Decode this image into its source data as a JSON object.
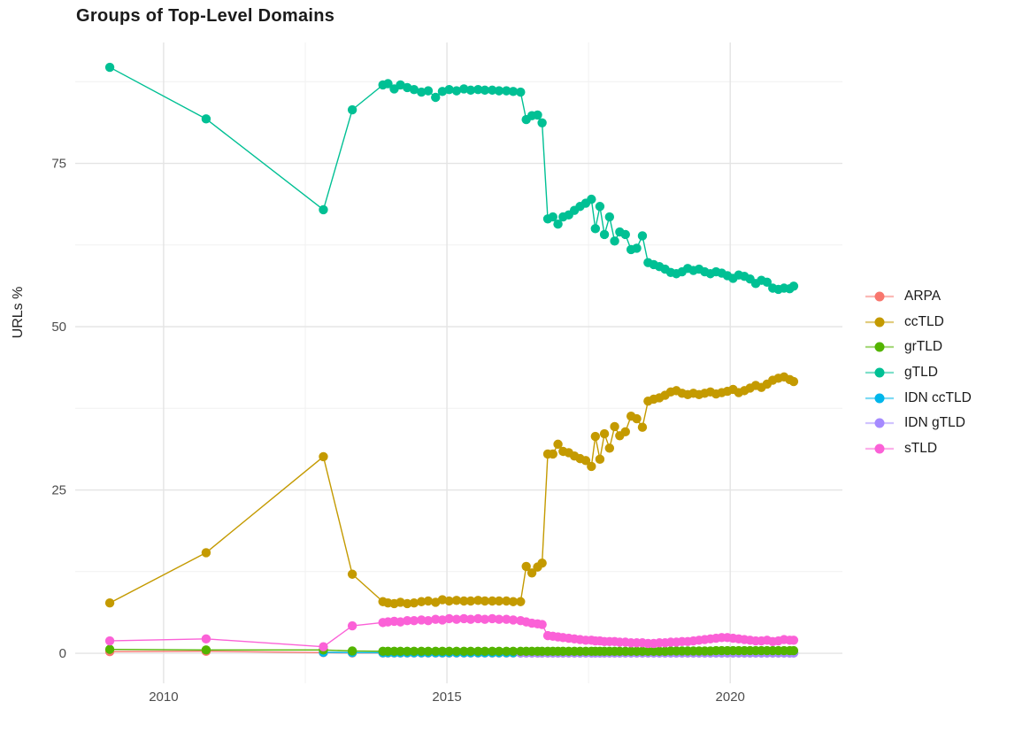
{
  "chart": {
    "title": "Groups of Top-Level Domains",
    "ylabel": "URLs %"
  },
  "chart_data": {
    "type": "line",
    "title": "Groups of Top-Level Domains",
    "xlabel": "",
    "ylabel": "URLs %",
    "grid": true,
    "legend_position": "right",
    "marker": "point",
    "axes": {
      "x": {
        "domain": [
          2008.44,
          2021.98
        ],
        "ticks": [
          2010,
          2015,
          2020
        ],
        "tick_labels": [
          "2010",
          "2015",
          "2020"
        ],
        "minor": [
          2012.5,
          2017.5
        ]
      },
      "y": {
        "domain": [
          -4.6,
          93.5
        ],
        "ticks": [
          0,
          25,
          50,
          75
        ],
        "tick_labels": [
          "0",
          "25",
          "50",
          "75"
        ],
        "minor": [
          12.5,
          37.5,
          62.5,
          87.5
        ]
      }
    },
    "draw_order": [
      0,
      4,
      5,
      1,
      2,
      3,
      6
    ],
    "x": [
      2009.05,
      2010.75,
      2012.82,
      2013.33,
      2013.87,
      2013.96,
      2014.07,
      2014.18,
      2014.3,
      2014.42,
      2014.55,
      2014.67,
      2014.8,
      2014.92,
      2015.04,
      2015.17,
      2015.3,
      2015.42,
      2015.55,
      2015.67,
      2015.8,
      2015.92,
      2016.05,
      2016.17,
      2016.3,
      2016.4,
      2016.5,
      2016.6,
      2016.68,
      2016.78,
      2016.87,
      2016.96,
      2017.05,
      2017.15,
      2017.25,
      2017.35,
      2017.45,
      2017.55,
      2017.62,
      2017.7,
      2017.78,
      2017.87,
      2017.96,
      2018.05,
      2018.15,
      2018.25,
      2018.35,
      2018.45,
      2018.55,
      2018.65,
      2018.75,
      2018.85,
      2018.95,
      2019.05,
      2019.15,
      2019.25,
      2019.35,
      2019.45,
      2019.55,
      2019.65,
      2019.75,
      2019.85,
      2019.95,
      2020.05,
      2020.15,
      2020.25,
      2020.35,
      2020.45,
      2020.55,
      2020.65,
      2020.75,
      2020.85,
      2020.95,
      2021.05,
      2021.12
    ],
    "series": [
      {
        "name": "ARPA",
        "color": "#F8766D",
        "values": [
          0.25,
          0.3,
          0.1,
          0.05,
          0.05,
          0.05,
          0.05,
          0.05,
          0.05,
          0.05,
          0.05,
          0.05,
          0.05,
          0.05,
          0.05,
          0.05,
          0.05,
          0.05,
          0.05,
          0.05,
          0.05,
          0.05,
          0.05,
          0.05,
          0.05,
          0.05,
          0.05,
          0.05,
          0.05,
          0.05,
          0.05,
          0.05,
          0.05,
          0.05,
          0.05,
          0.05,
          0.05,
          0.05,
          0.05,
          0.05,
          0.05,
          0.05,
          0.05,
          0.05,
          0.05,
          0.05,
          0.05,
          0.05,
          0.05,
          0.05,
          0.05,
          0.05,
          0.05,
          0.05,
          0.05,
          0.05,
          0.05,
          0.05,
          0.05,
          0.05,
          0.05,
          0.05,
          0.05,
          0.05,
          0.05,
          0.05,
          0.05,
          0.05,
          0.05,
          0.05,
          0.05,
          0.05,
          0.05,
          0.05,
          0.05
        ]
      },
      {
        "name": "ccTLD",
        "color": "#C49A00",
        "values": [
          7.7,
          15.4,
          30.1,
          12.1,
          7.9,
          7.7,
          7.6,
          7.8,
          7.6,
          7.7,
          7.9,
          8.0,
          7.8,
          8.2,
          8.0,
          8.1,
          8.0,
          8.0,
          8.1,
          8.0,
          8.0,
          8.0,
          8.0,
          7.9,
          7.9,
          13.3,
          12.3,
          13.2,
          13.8,
          30.5,
          30.5,
          32.0,
          30.9,
          30.7,
          30.2,
          29.8,
          29.5,
          28.6,
          33.2,
          29.7,
          33.6,
          31.4,
          34.7,
          33.3,
          33.9,
          36.3,
          35.9,
          34.6,
          38.6,
          38.9,
          39.1,
          39.5,
          40.0,
          40.2,
          39.8,
          39.6,
          39.8,
          39.6,
          39.8,
          40.0,
          39.7,
          39.9,
          40.1,
          40.4,
          39.9,
          40.2,
          40.6,
          41.0,
          40.7,
          41.2,
          41.8,
          42.1,
          42.3,
          41.9,
          41.6
        ]
      },
      {
        "name": "grTLD",
        "color": "#53B400",
        "values": [
          0.6,
          0.5,
          0.5,
          0.35,
          0.3,
          0.3,
          0.3,
          0.3,
          0.3,
          0.3,
          0.3,
          0.3,
          0.3,
          0.3,
          0.3,
          0.3,
          0.3,
          0.3,
          0.3,
          0.3,
          0.3,
          0.3,
          0.3,
          0.3,
          0.3,
          0.3,
          0.3,
          0.3,
          0.3,
          0.3,
          0.3,
          0.3,
          0.3,
          0.3,
          0.3,
          0.3,
          0.3,
          0.3,
          0.3,
          0.3,
          0.3,
          0.3,
          0.3,
          0.3,
          0.3,
          0.3,
          0.3,
          0.3,
          0.3,
          0.3,
          0.3,
          0.3,
          0.35,
          0.35,
          0.35,
          0.35,
          0.35,
          0.35,
          0.35,
          0.35,
          0.4,
          0.4,
          0.4,
          0.4,
          0.4,
          0.4,
          0.4,
          0.4,
          0.4,
          0.4,
          0.4,
          0.4,
          0.4,
          0.4,
          0.4
        ]
      },
      {
        "name": "gTLD",
        "color": "#00C094",
        "values": [
          89.7,
          81.8,
          67.9,
          83.2,
          87.0,
          87.2,
          86.4,
          87.0,
          86.6,
          86.3,
          85.9,
          86.1,
          85.1,
          86.0,
          86.3,
          86.1,
          86.4,
          86.2,
          86.3,
          86.2,
          86.2,
          86.1,
          86.1,
          86.0,
          85.9,
          81.7,
          82.3,
          82.4,
          81.2,
          66.5,
          66.8,
          65.7,
          66.8,
          67.1,
          67.8,
          68.4,
          68.9,
          69.5,
          65.0,
          68.4,
          64.1,
          66.8,
          63.1,
          64.5,
          64.1,
          61.8,
          62.0,
          63.9,
          59.8,
          59.5,
          59.2,
          58.8,
          58.3,
          58.1,
          58.4,
          58.9,
          58.6,
          58.8,
          58.4,
          58.1,
          58.4,
          58.2,
          57.8,
          57.4,
          57.9,
          57.7,
          57.3,
          56.6,
          57.1,
          56.8,
          55.9,
          55.7,
          55.9,
          55.8,
          56.2
        ]
      },
      {
        "name": "IDN ccTLD",
        "color": "#00B6EB",
        "values": [
          null,
          null,
          0.15,
          0.1,
          0.08,
          0.08,
          0.08,
          0.08,
          0.08,
          0.08,
          0.08,
          0.08,
          0.08,
          0.08,
          0.08,
          0.08,
          0.08,
          0.08,
          0.08,
          0.08,
          0.08,
          0.08,
          0.08,
          0.08,
          0.08,
          0.08,
          0.08,
          0.08,
          0.08,
          0.08,
          0.08,
          0.08,
          0.08,
          0.08,
          0.08,
          0.08,
          0.08,
          0.08,
          0.08,
          0.08,
          0.08,
          0.08,
          0.08,
          0.08,
          0.08,
          0.08,
          0.08,
          0.08,
          0.08,
          0.08,
          0.08,
          0.08,
          0.08,
          0.08,
          0.08,
          0.08,
          0.08,
          0.08,
          0.08,
          0.08,
          0.08,
          0.08,
          0.08,
          0.08,
          0.08,
          0.08,
          0.08,
          0.08,
          0.08,
          0.08,
          0.08,
          0.08,
          0.08,
          0.08,
          0.08
        ]
      },
      {
        "name": "IDN gTLD",
        "color": "#A58AFF",
        "values": [
          null,
          null,
          null,
          null,
          null,
          null,
          null,
          null,
          null,
          null,
          null,
          null,
          null,
          null,
          null,
          null,
          null,
          null,
          null,
          null,
          null,
          null,
          null,
          null,
          0.05,
          0.05,
          0.05,
          0.05,
          0.05,
          0.05,
          0.05,
          0.05,
          0.05,
          0.05,
          0.05,
          0.05,
          0.05,
          0.05,
          0.05,
          0.05,
          0.05,
          0.05,
          0.05,
          0.05,
          0.05,
          0.05,
          0.05,
          0.05,
          0.05,
          0.05,
          0.05,
          0.05,
          0.05,
          0.05,
          0.05,
          0.05,
          0.05,
          0.05,
          0.05,
          0.05,
          0.05,
          0.05,
          0.05,
          0.05,
          0.05,
          0.05,
          0.05,
          0.05,
          0.05,
          0.05,
          0.05,
          0.05,
          0.05,
          0.05,
          0.05
        ]
      },
      {
        "name": "sTLD",
        "color": "#FB61D7",
        "values": [
          1.9,
          2.2,
          1.0,
          4.2,
          4.7,
          4.8,
          4.9,
          4.8,
          5.0,
          5.0,
          5.1,
          5.0,
          5.2,
          5.1,
          5.3,
          5.2,
          5.3,
          5.2,
          5.3,
          5.2,
          5.3,
          5.2,
          5.2,
          5.1,
          5.0,
          4.8,
          4.6,
          4.5,
          4.4,
          2.7,
          2.6,
          2.5,
          2.4,
          2.3,
          2.2,
          2.1,
          2.0,
          2.0,
          1.9,
          1.9,
          1.8,
          1.8,
          1.8,
          1.7,
          1.7,
          1.6,
          1.6,
          1.6,
          1.5,
          1.5,
          1.6,
          1.6,
          1.7,
          1.7,
          1.8,
          1.8,
          1.9,
          2.0,
          2.1,
          2.2,
          2.3,
          2.4,
          2.4,
          2.3,
          2.2,
          2.1,
          2.0,
          1.9,
          1.9,
          2.0,
          1.8,
          1.9,
          2.1,
          2.0,
          2.0
        ]
      }
    ]
  }
}
